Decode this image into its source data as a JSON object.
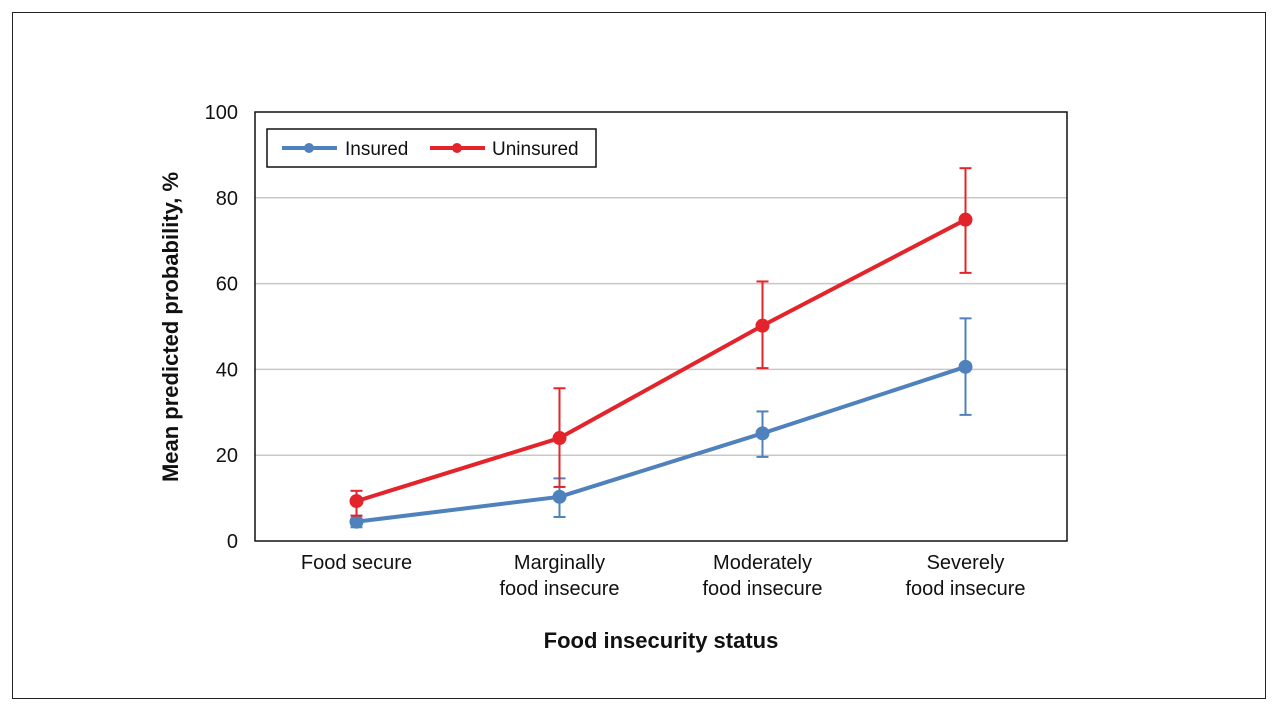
{
  "chart_data": {
    "type": "line",
    "xlabel": "Food insecurity status",
    "ylabel": "Mean predicted probability, %",
    "ylim": [
      0,
      100
    ],
    "yticks": [
      0,
      20,
      40,
      60,
      80,
      100
    ],
    "grid": true,
    "legend_position": "top-left",
    "categories": [
      [
        "Food secure"
      ],
      [
        "Marginally",
        "food insecure"
      ],
      [
        "Moderately",
        "food insecure"
      ],
      [
        "Severely",
        "food insecure"
      ]
    ],
    "series": [
      {
        "name": "Insured",
        "color": "#4F81BD",
        "values": [
          4.5,
          10.3,
          25.1,
          40.6
        ],
        "error_low": [
          3.2,
          5.6,
          19.6,
          29.4
        ],
        "error_high": [
          5.9,
          14.6,
          30.2,
          51.9
        ]
      },
      {
        "name": "Uninsured",
        "color": "#E3242B",
        "values": [
          9.3,
          24.0,
          50.2,
          74.9
        ],
        "error_low": [
          5.9,
          12.6,
          40.3,
          62.5
        ],
        "error_high": [
          11.7,
          35.6,
          60.5,
          86.9
        ]
      }
    ]
  }
}
